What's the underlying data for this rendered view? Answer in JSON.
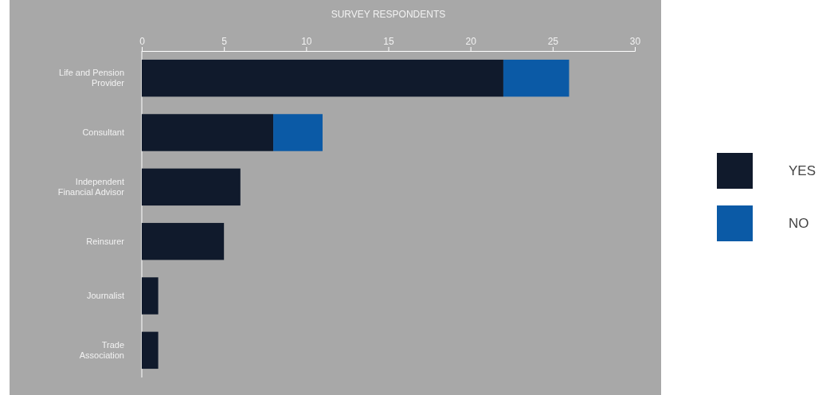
{
  "chart_data": {
    "type": "bar",
    "orientation": "horizontal",
    "stacked": true,
    "xlabel": "SURVEY RESPONDENTS",
    "categories": [
      "Life and Pension Provider",
      "Consultant",
      "Independent Financial Advisor",
      "Reinsurer",
      "Journalist",
      "Trade Association"
    ],
    "series": [
      {
        "name": "YES",
        "color": "#101a2c",
        "values": [
          22,
          8,
          6,
          5,
          1,
          1
        ]
      },
      {
        "name": "NO",
        "color": "#0b5aa6",
        "values": [
          4,
          3,
          0,
          0,
          0,
          0
        ]
      }
    ],
    "xlim": [
      0,
      30
    ],
    "xticks": [
      0,
      5,
      10,
      15,
      20,
      25,
      30
    ],
    "grid": false,
    "legend": "right"
  }
}
